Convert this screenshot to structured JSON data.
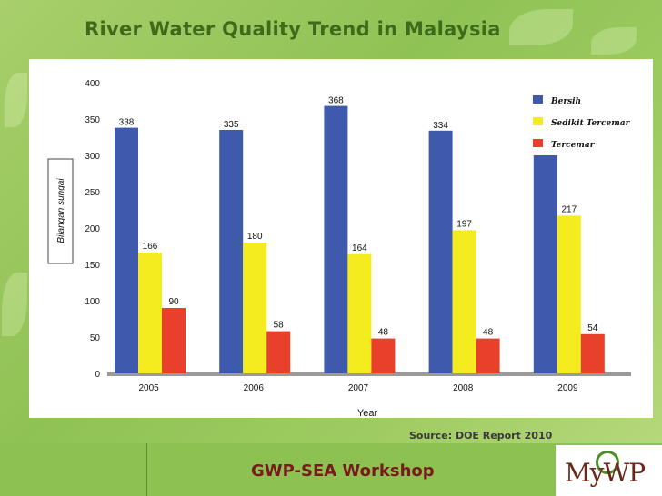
{
  "slide": {
    "title": "River Water Quality Trend in Malaysia",
    "source": "Source: DOE Report 2010",
    "footer": "GWP-SEA Workshop",
    "logo": "MyWP"
  },
  "colors": {
    "bersih": "#3f5aad",
    "sedikit_tercemar": "#f5ec1f",
    "tercemar": "#e8402a",
    "axis": "#999999"
  },
  "chart_data": {
    "type": "bar",
    "xlabel": "Year",
    "ylabel": "Bilangan sungai",
    "ylim": [
      0,
      400
    ],
    "yticks": [
      0,
      50,
      100,
      150,
      200,
      250,
      300,
      350,
      400
    ],
    "categories": [
      "2005",
      "2006",
      "2007",
      "2008",
      "2009"
    ],
    "legend_position": "top-right",
    "series": [
      {
        "name": "Bersih",
        "color_key": "bersih",
        "values": [
          338,
          335,
          368,
          334,
          300
        ],
        "labels": [
          "338",
          "335",
          "368",
          "334",
          ""
        ]
      },
      {
        "name": "Sedikit Tercemar",
        "color_key": "sedikit_tercemar",
        "values": [
          166,
          180,
          164,
          197,
          217
        ],
        "labels": [
          "166",
          "180",
          "164",
          "197",
          "217"
        ]
      },
      {
        "name": "Tercemar",
        "color_key": "tercemar",
        "values": [
          90,
          58,
          48,
          48,
          54
        ],
        "labels": [
          "90",
          "58",
          "48",
          "48",
          "54"
        ]
      }
    ]
  }
}
